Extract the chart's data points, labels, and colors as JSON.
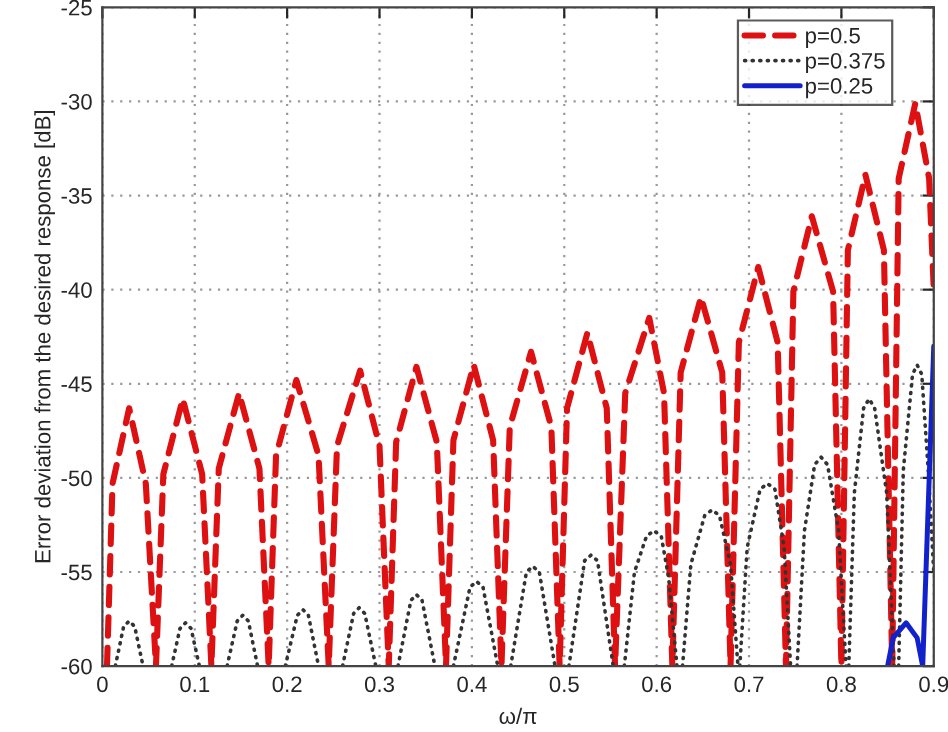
{
  "chart_data": {
    "type": "line",
    "xlabel": "ω/π",
    "ylabel": "Error deviation from the desired response [dB]",
    "xlim": [
      0,
      0.9
    ],
    "ylim": [
      -60,
      -25
    ],
    "xticks": [
      0,
      0.1,
      0.2,
      0.3,
      0.4,
      0.5,
      0.6,
      0.7,
      0.8,
      {
        "value": 0.9,
        "label": "0.9"
      }
    ],
    "yticks": [
      -60,
      -55,
      -50,
      -45,
      -40,
      -35,
      -30,
      -25
    ],
    "grid": true,
    "legend": "top right",
    "marker": "none",
    "series": [
      {
        "name": "p=0.5",
        "color": "#dd1111",
        "line_style": "dashed",
        "x": [
          0.005,
          0.011,
          0.029,
          0.047,
          0.058,
          0.066,
          0.087,
          0.108,
          0.118,
          0.126,
          0.148,
          0.17,
          0.18,
          0.188,
          0.21,
          0.234,
          0.245,
          0.254,
          0.279,
          0.3,
          0.31,
          0.318,
          0.34,
          0.362,
          0.372,
          0.38,
          0.402,
          0.423,
          0.432,
          0.441,
          0.464,
          0.486,
          0.495,
          0.503,
          0.525,
          0.546,
          0.555,
          0.566,
          0.592,
          0.608,
          0.617,
          0.626,
          0.648,
          0.671,
          0.68,
          0.689,
          0.71,
          0.731,
          0.74,
          0.748,
          0.768,
          0.791,
          0.8,
          0.807,
          0.826,
          0.846,
          0.855,
          0.862,
          0.88,
          0.895,
          0.9
        ],
        "values": [
          -60,
          -50.3,
          -46.3,
          -50.3,
          -60,
          -49.8,
          -45.8,
          -49.8,
          -60,
          -49.5,
          -45.5,
          -49.5,
          -60,
          -48.8,
          -44.8,
          -48.8,
          -60,
          -48.3,
          -44.3,
          -48.3,
          -60,
          -48.1,
          -44.1,
          -48.1,
          -60,
          -48,
          -44,
          -48,
          -60,
          -47.3,
          -43.3,
          -47.3,
          -60,
          -46.3,
          -42.3,
          -46.3,
          -60,
          -45.5,
          -41.5,
          -45.5,
          -60,
          -44.4,
          -40.4,
          -44.4,
          -60,
          -42.8,
          -38.8,
          -42.8,
          -60,
          -40.1,
          -36.1,
          -40.1,
          -60,
          -37.9,
          -33.9,
          -37.9,
          -60,
          -34.1,
          -30.1,
          -34.1,
          -40
        ]
      },
      {
        "name": "p=0.375",
        "color": "#333333",
        "line_style": "dotted",
        "x": [
          0.014,
          0.023,
          0.029,
          0.035,
          0.044,
          0.06,
          0.075,
          0.084,
          0.09,
          0.096,
          0.105,
          0.12,
          0.135,
          0.146,
          0.152,
          0.158,
          0.168,
          0.183,
          0.198,
          0.211,
          0.217,
          0.223,
          0.234,
          0.247,
          0.26,
          0.272,
          0.278,
          0.284,
          0.296,
          0.308,
          0.32,
          0.334,
          0.34,
          0.346,
          0.36,
          0.37,
          0.38,
          0.398,
          0.405,
          0.412,
          0.428,
          0.435,
          0.442,
          0.459,
          0.466,
          0.473,
          0.49,
          0.497,
          0.505,
          0.522,
          0.529,
          0.536,
          0.553,
          0.559,
          0.565,
          0.576,
          0.589,
          0.597,
          0.605,
          0.613,
          0.622,
          0.625,
          0.628,
          0.637,
          0.652,
          0.66,
          0.668,
          0.68,
          0.688,
          0.689,
          0.69,
          0.698,
          0.712,
          0.72,
          0.728,
          0.738,
          0.745,
          0.748,
          0.752,
          0.76,
          0.771,
          0.778,
          0.785,
          0.797,
          0.805,
          0.806,
          0.808,
          0.814,
          0.824,
          0.83,
          0.836,
          0.849,
          0.857,
          0.86,
          0.862,
          0.867,
          0.877,
          0.882,
          0.887,
          0.894,
          0.9
        ],
        "values": [
          -60,
          -57.9,
          -57.6,
          -57.9,
          -60,
          null,
          -60,
          -58,
          -57.7,
          -58,
          -60,
          null,
          -60,
          -57.6,
          -57.3,
          -57.6,
          -60,
          null,
          -60,
          -57.3,
          -57,
          -57.3,
          -60,
          null,
          -60,
          -57.2,
          -56.9,
          -57.2,
          -60,
          null,
          -60,
          -56.5,
          -56.2,
          -56.5,
          -60,
          null,
          -60,
          -55.8,
          -55.5,
          -55.8,
          -60,
          null,
          -60,
          -55,
          -54.7,
          -55,
          -60,
          null,
          -60,
          -54.4,
          -54.1,
          -54.4,
          -60,
          null,
          -60,
          -55,
          -53.1,
          -52.8,
          -53.1,
          -55.3,
          -60,
          null,
          -60,
          -54.6,
          -52,
          -51.7,
          -52,
          -54.6,
          -60,
          null,
          -60,
          -53.7,
          -50.6,
          -50.3,
          -50.6,
          -53.7,
          -60,
          null,
          -60,
          -52.8,
          -49.3,
          -48.9,
          -49.3,
          -52.8,
          -60,
          null,
          -60,
          -50.8,
          -46.3,
          -45.8,
          -46.3,
          -50.8,
          -60,
          null,
          -60,
          -49.6,
          -44.5,
          -44,
          -44.5,
          -49.6,
          -55
        ]
      },
      {
        "name": "p=0.25",
        "color": "#1122cc",
        "line_style": "solid",
        "x": [
          0.85,
          0.856,
          0.87,
          0.882,
          0.888,
          0.9
        ],
        "values": [
          -60,
          -58.5,
          -57.7,
          -58.5,
          -60,
          -43
        ]
      }
    ]
  }
}
